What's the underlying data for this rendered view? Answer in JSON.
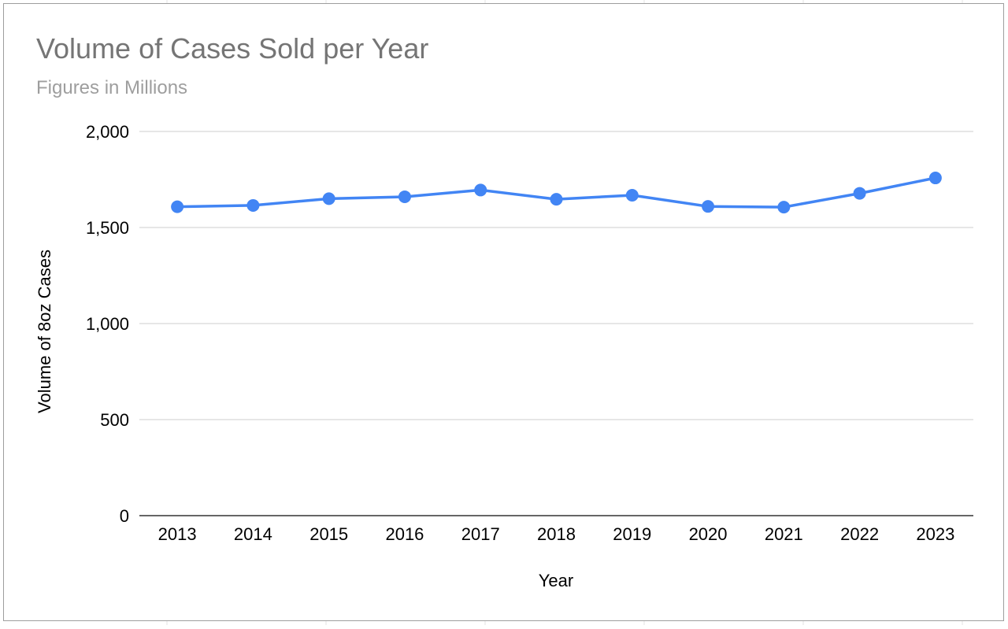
{
  "colors": {
    "series": "#4285f4",
    "title": "#757575",
    "subtitle": "#9e9e9e"
  },
  "chart_data": {
    "type": "line",
    "title": "Volume of Cases Sold per Year",
    "subtitle": "Figures in Millions",
    "xlabel": "Year",
    "ylabel": "Volume of 8oz Cases",
    "x": [
      "2013",
      "2014",
      "2015",
      "2016",
      "2017",
      "2018",
      "2019",
      "2020",
      "2021",
      "2022",
      "2023"
    ],
    "series": [
      {
        "values": [
          1608,
          1615,
          1650,
          1660,
          1695,
          1647,
          1668,
          1610,
          1606,
          1678,
          1758
        ]
      }
    ],
    "ylim": [
      0,
      2000
    ],
    "yticks": [
      0,
      500,
      1000,
      1500,
      2000
    ],
    "ytick_labels": [
      "0",
      "500",
      "1,000",
      "1,500",
      "2,000"
    ],
    "grid": true,
    "legend": "none",
    "markers": true
  }
}
